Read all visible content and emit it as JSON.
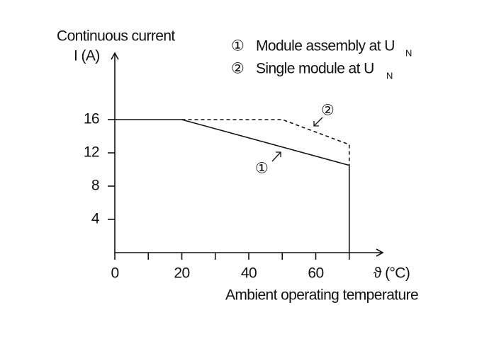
{
  "chart_data": {
    "type": "line",
    "y_label": [
      "Continuous current",
      "I (A)"
    ],
    "x_label": [
      "ϑ (°C)",
      "Ambient operating temperature"
    ],
    "xlim": [
      0,
      80
    ],
    "ylim": [
      0,
      24
    ],
    "xticks": [
      0,
      20,
      40,
      60
    ],
    "xminor_ticks": [
      10,
      30,
      50,
      70
    ],
    "yticks": [
      4,
      8,
      12,
      16
    ],
    "series": [
      {
        "marker": "①",
        "name": "Module assembly at U",
        "subscript": "N",
        "color": "#111111",
        "dash": false,
        "x": [
          0,
          20,
          70,
          70
        ],
        "values": [
          16,
          16,
          10.5,
          0
        ]
      },
      {
        "marker": "②",
        "name": "Single module at U",
        "subscript": "N",
        "color": "#111111",
        "dash": true,
        "x": [
          20,
          50,
          70,
          70
        ],
        "values": [
          16,
          16,
          13,
          10.5
        ]
      }
    ]
  }
}
